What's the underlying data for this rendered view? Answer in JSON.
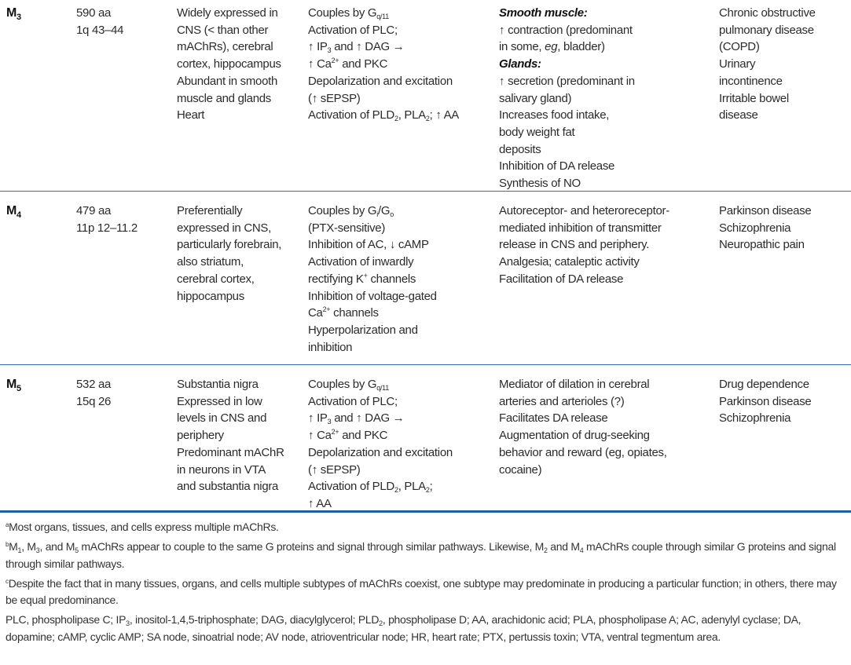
{
  "table": {
    "rows": [
      {
        "receptor": "M_{3}",
        "cells": [
          [
            "590 aa",
            "1q 43–44"
          ],
          [
            "Widely expressed in",
            "CNS (< than other",
            "mAChRs), cerebral",
            "cortex, hippocampus",
            "Abundant in smooth",
            "muscle and glands",
            "Heart"
          ],
          [
            "Couples by G_{q/11}",
            "Activation of PLC;",
            "↑ IP_{3} and ↑ DAG →",
            "↑ Ca^{2+} and PKC",
            "Depolarization and excitation",
            "(↑ sEPSP)",
            "Activation of PLD_{2}, PLA_{2}; ↑ AA"
          ],
          [
            "**Smooth muscle:**",
            "↑ contraction (predominant",
            "in some, //eg//, bladder)",
            "**Glands:**",
            "↑ secretion (predominant in",
            "salivary gland)",
            "Increases food intake,",
            "body weight fat",
            "deposits",
            "Inhibition of DA release",
            "Synthesis of NO"
          ],
          [
            "Chronic obstructive",
            "pulmonary disease",
            "(COPD)",
            "Urinary",
            "incontinence",
            "Irritable bowel",
            "disease"
          ]
        ]
      },
      {
        "receptor": "M_{4}",
        "cells": [
          [
            "479 aa",
            "11p 12–11.2"
          ],
          [
            "Preferentially",
            "expressed in CNS,",
            "particularly forebrain,",
            "also striatum,",
            "cerebral cortex,",
            "hippocampus"
          ],
          [
            "Couples by G_{i}/G_{o}",
            "(PTX-sensitive)",
            "Inhibition of AC, ↓ cAMP",
            "Activation of inwardly",
            "rectifying K^{+} channels",
            "Inhibition of voltage-gated",
            "Ca^{2+} channels",
            "Hyperpolarization and",
            "inhibition"
          ],
          [
            "Autoreceptor- and heteroreceptor-",
            "mediated inhibition of transmitter",
            "release in CNS and periphery.",
            "Analgesia; cataleptic activity",
            "Facilitation of DA release"
          ],
          [
            "Parkinson disease",
            "Schizophrenia",
            "Neuropathic pain"
          ]
        ]
      },
      {
        "receptor": "M_{5}",
        "cells": [
          [
            "532 aa",
            "15q 26"
          ],
          [
            "Substantia nigra",
            "Expressed in low",
            "levels in CNS and",
            "periphery",
            "Predominant mAChR",
            "in neurons in VTA",
            "and substantia nigra"
          ],
          [
            "Couples by G_{q/11}",
            "Activation of PLC;",
            "↑ IP_{3} and ↑ DAG →",
            "↑ Ca^{2+} and PKC",
            "Depolarization and excitation",
            "(↑ sEPSP)",
            "Activation of PLD_{2}, PLA_{2};",
            "↑ AA"
          ],
          [
            "Mediator of dilation in cerebral",
            "arteries and arterioles (?)",
            "Facilitates DA release",
            "Augmentation of drug-seeking",
            "behavior and reward (eg, opiates,",
            "cocaine)"
          ],
          [
            "Drug dependence",
            "Parkinson disease",
            "Schizophrenia"
          ]
        ]
      }
    ]
  },
  "footnotes": [
    "^{a}Most organs, tissues, and cells express multiple mAChRs.",
    "^{b}M_{1}, M_{3}, and M_{5} mAChRs appear to couple to the same G proteins and signal through similar pathways. Likewise, M_{2} and M_{4} mAChRs couple through similar G proteins and signal through similar pathways.",
    "^{c}Despite the fact that in many tissues, organs, and cells multiple subtypes of mAChRs coexist, one subtype may predominate in producing a particular function; in others, there may be equal predominance.",
    "PLC, phospholipase C; IP_{3}, inositol-1,4,5-triphosphate; DAG, diacylglycerol; PLD_{2}, phospholipase D; AA, arachidonic acid; PLA, phospholipase A; AC, adenylyl cyclase; DA, dopamine; cAMP, cyclic AMP; SA node, sinoatrial node; AV node, atrioventricular node; HR, heart rate; PTX, pertussis toxin; VTA, ventral tegmentum area."
  ],
  "colors": {
    "rule": "#2f6db3",
    "rule_bottom": "#1f5fa6"
  }
}
